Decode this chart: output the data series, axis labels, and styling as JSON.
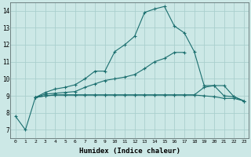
{
  "background_color": "#cce8e6",
  "grid_color": "#aacfcd",
  "line_color": "#1a6e6e",
  "xlabel": "Humidex (Indice chaleur)",
  "xlim": [
    -0.5,
    23.5
  ],
  "ylim": [
    6.5,
    14.5
  ],
  "xticks": [
    0,
    1,
    2,
    3,
    4,
    5,
    6,
    7,
    8,
    9,
    10,
    11,
    12,
    13,
    14,
    15,
    16,
    17,
    18,
    19,
    20,
    21,
    22,
    23
  ],
  "yticks": [
    7,
    8,
    9,
    10,
    11,
    12,
    13,
    14
  ],
  "series": [
    {
      "x": [
        0,
        1,
        2,
        3,
        4,
        5,
        6,
        7,
        8,
        9,
        10,
        11,
        12,
        13,
        14,
        15,
        16,
        17,
        18,
        19,
        20,
        21,
        22,
        23
      ],
      "y": [
        7.8,
        7.0,
        8.9,
        9.2,
        9.4,
        9.5,
        9.65,
        10.0,
        10.45,
        10.45,
        11.6,
        12.0,
        12.5,
        13.9,
        14.1,
        14.25,
        13.1,
        12.7,
        11.6,
        9.6,
        9.6,
        9.0,
        8.95,
        8.7
      ]
    },
    {
      "x": [
        2,
        3,
        4,
        5,
        6,
        7,
        8,
        9,
        10,
        11,
        12,
        13,
        14,
        15,
        16,
        17,
        18,
        19,
        20,
        21,
        22,
        23
      ],
      "y": [
        8.9,
        9.1,
        9.15,
        9.2,
        9.25,
        9.5,
        9.7,
        9.9,
        10.0,
        10.1,
        10.25,
        10.6,
        11.0,
        11.2,
        11.55,
        11.55,
        null,
        null,
        null,
        null,
        null,
        null
      ]
    },
    {
      "x": [
        2,
        3,
        4,
        5,
        6,
        7,
        8,
        9,
        10,
        11,
        12,
        13,
        14,
        15,
        16,
        17,
        18,
        19,
        20,
        21,
        22,
        23
      ],
      "y": [
        8.9,
        9.0,
        9.05,
        9.05,
        9.05,
        9.05,
        9.05,
        9.05,
        9.05,
        9.05,
        9.05,
        9.05,
        9.05,
        9.05,
        9.05,
        9.05,
        9.05,
        9.0,
        8.95,
        8.85,
        8.85,
        8.7
      ]
    },
    {
      "x": [
        2,
        3,
        4,
        5,
        6,
        7,
        8,
        9,
        10,
        11,
        12,
        13,
        14,
        15,
        16,
        17,
        18,
        19,
        20,
        21,
        22,
        23
      ],
      "y": [
        8.9,
        9.0,
        9.05,
        9.05,
        9.05,
        9.05,
        9.05,
        9.05,
        9.05,
        9.05,
        9.05,
        9.05,
        9.05,
        9.05,
        9.05,
        9.05,
        9.05,
        9.5,
        9.6,
        9.6,
        8.95,
        8.7
      ]
    }
  ]
}
